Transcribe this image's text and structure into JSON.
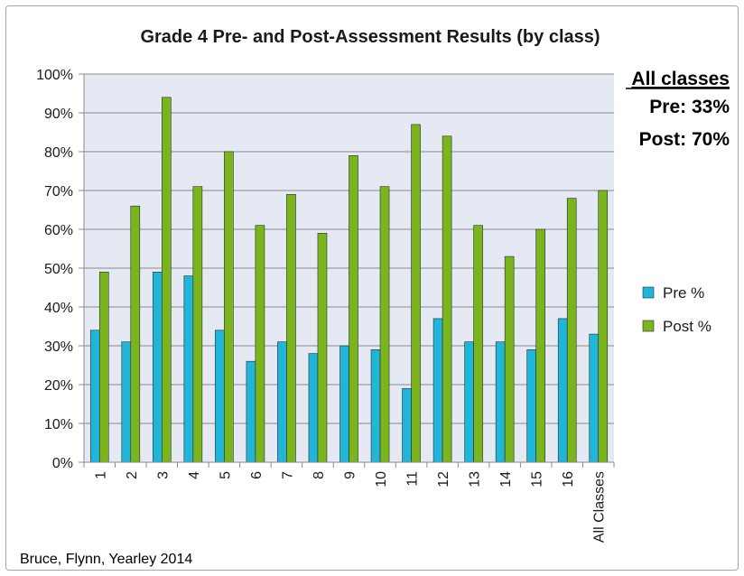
{
  "chart_data": {
    "type": "bar",
    "title": "Grade 4 Pre- and Post-Assessment Results (by class)",
    "categories": [
      "1",
      "2",
      "3",
      "4",
      "5",
      "6",
      "7",
      "8",
      "9",
      "10",
      "11",
      "12",
      "13",
      "14",
      "15",
      "16",
      "All Classes"
    ],
    "series": [
      {
        "name": "Pre %",
        "color": "#1fb6d9",
        "values": [
          34,
          31,
          49,
          48,
          34,
          26,
          31,
          28,
          30,
          29,
          19,
          37,
          31,
          31,
          29,
          37,
          33
        ]
      },
      {
        "name": "Post %",
        "color": "#7ab51d",
        "values": [
          49,
          66,
          94,
          71,
          80,
          61,
          69,
          59,
          79,
          71,
          87,
          84,
          61,
          53,
          60,
          68,
          70
        ]
      }
    ],
    "y_ticks": [
      "0%",
      "10%",
      "20%",
      "30%",
      "40%",
      "50%",
      "60%",
      "70%",
      "80%",
      "90%",
      "100%"
    ],
    "ylim": [
      0,
      100
    ],
    "grid": true,
    "legend_position": "right",
    "plot_background": "#e4e9f3",
    "summary": {
      "heading": "All classes",
      "pre": "Pre: 33%",
      "post": "Post: 70%"
    },
    "source": "Bruce, Flynn, Yearley 2014"
  }
}
